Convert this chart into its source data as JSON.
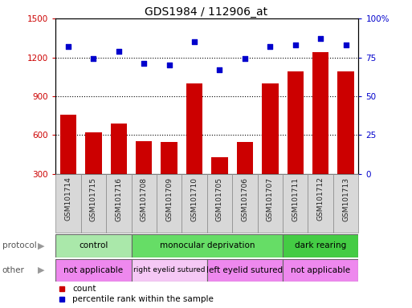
{
  "title": "GDS1984 / 112906_at",
  "samples": [
    "GSM101714",
    "GSM101715",
    "GSM101716",
    "GSM101708",
    "GSM101709",
    "GSM101710",
    "GSM101705",
    "GSM101706",
    "GSM101707",
    "GSM101711",
    "GSM101712",
    "GSM101713"
  ],
  "counts": [
    760,
    620,
    690,
    555,
    545,
    1000,
    430,
    545,
    1000,
    1090,
    1240,
    1090
  ],
  "percentile": [
    82,
    74,
    79,
    71,
    70,
    85,
    67,
    74,
    82,
    83,
    87,
    83
  ],
  "ylim_left": [
    300,
    1500
  ],
  "ylim_right": [
    0,
    100
  ],
  "yticks_left": [
    300,
    600,
    900,
    1200,
    1500
  ],
  "yticks_right": [
    0,
    25,
    50,
    75,
    100
  ],
  "bar_color": "#cc0000",
  "scatter_color": "#0000cc",
  "protocol_groups": [
    {
      "label": "control",
      "start": 0,
      "end": 3,
      "color": "#aae8aa"
    },
    {
      "label": "monocular deprivation",
      "start": 3,
      "end": 9,
      "color": "#66dd66"
    },
    {
      "label": "dark rearing",
      "start": 9,
      "end": 12,
      "color": "#44cc44"
    }
  ],
  "other_groups": [
    {
      "label": "not applicable",
      "start": 0,
      "end": 3,
      "color": "#ee88ee"
    },
    {
      "label": "right eyelid sutured",
      "start": 3,
      "end": 6,
      "color": "#f5c8f5"
    },
    {
      "label": "left eyelid sutured",
      "start": 6,
      "end": 9,
      "color": "#ee88ee"
    },
    {
      "label": "not applicable",
      "start": 9,
      "end": 12,
      "color": "#ee88ee"
    }
  ],
  "background_color": "#ffffff",
  "left_axis_color": "#cc0000",
  "right_axis_color": "#0000cc"
}
